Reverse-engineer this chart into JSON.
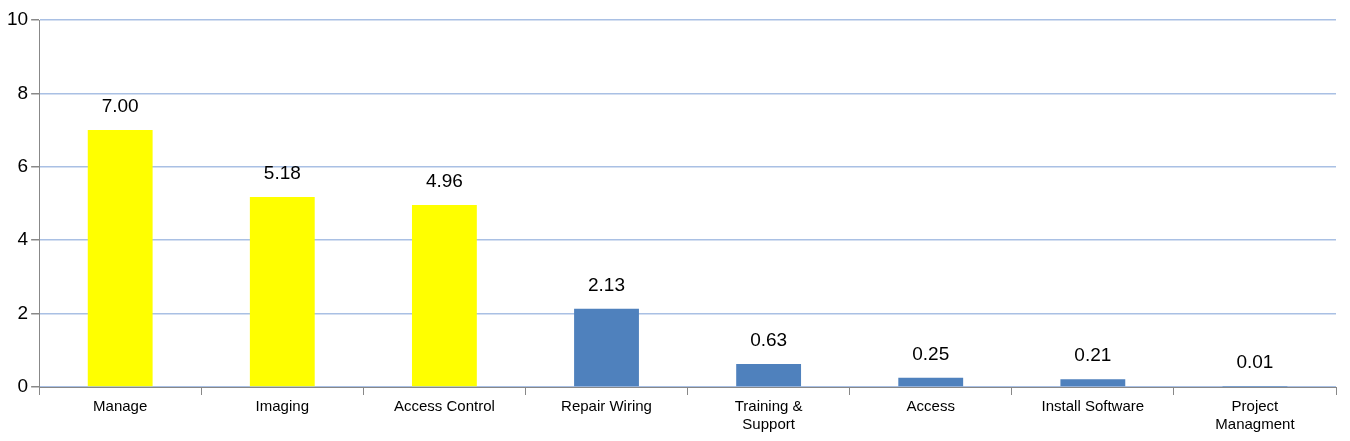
{
  "chart_data": {
    "type": "bar",
    "categories": [
      "Manage",
      "Imaging",
      "Access Control",
      "Repair Wiring",
      "Training & Support",
      "Access",
      "Install Software",
      "Project Managment"
    ],
    "values": [
      7.0,
      5.18,
      4.96,
      2.13,
      0.63,
      0.25,
      0.21,
      0.01
    ],
    "colors": [
      "#ffff00",
      "#ffff00",
      "#ffff00",
      "#4f81bd",
      "#4f81bd",
      "#4f81bd",
      "#4f81bd",
      "#4f81bd"
    ],
    "value_labels": [
      "7.00",
      "5.18",
      "4.96",
      "2.13",
      "0.63",
      "0.25",
      "0.21",
      "0.01"
    ],
    "ylim": [
      0,
      10
    ],
    "yticks": [
      0,
      2,
      4,
      6,
      8,
      10
    ],
    "grid": "y",
    "legend": false
  }
}
